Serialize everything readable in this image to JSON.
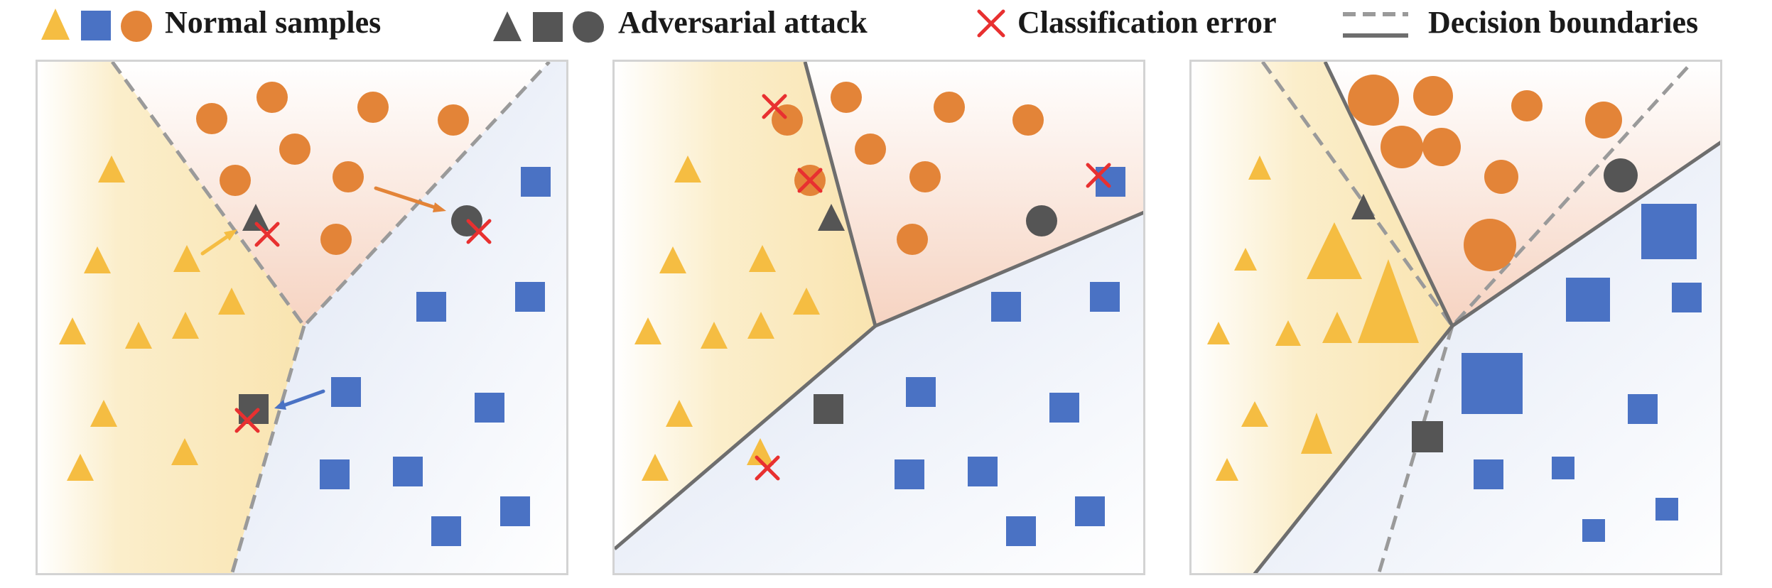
{
  "legend": {
    "normal_samples": "Normal samples",
    "adversarial_attack": "Adversarial attack",
    "classification_error": "Classification error",
    "decision_boundaries": "Decision boundaries"
  },
  "colors": {
    "triangle": "#f5bd42",
    "square": "#4a72c4",
    "circle": "#e38438",
    "adversarial": "#555555",
    "error": "#e83030",
    "boundary": "#6e6e6e",
    "boundary_dashed": "#9a9a9a"
  },
  "icons": [
    "triangle-icon",
    "square-icon",
    "circle-icon",
    "cross-icon"
  ],
  "panels": [
    "panel-1",
    "panel-2",
    "panel-3"
  ]
}
